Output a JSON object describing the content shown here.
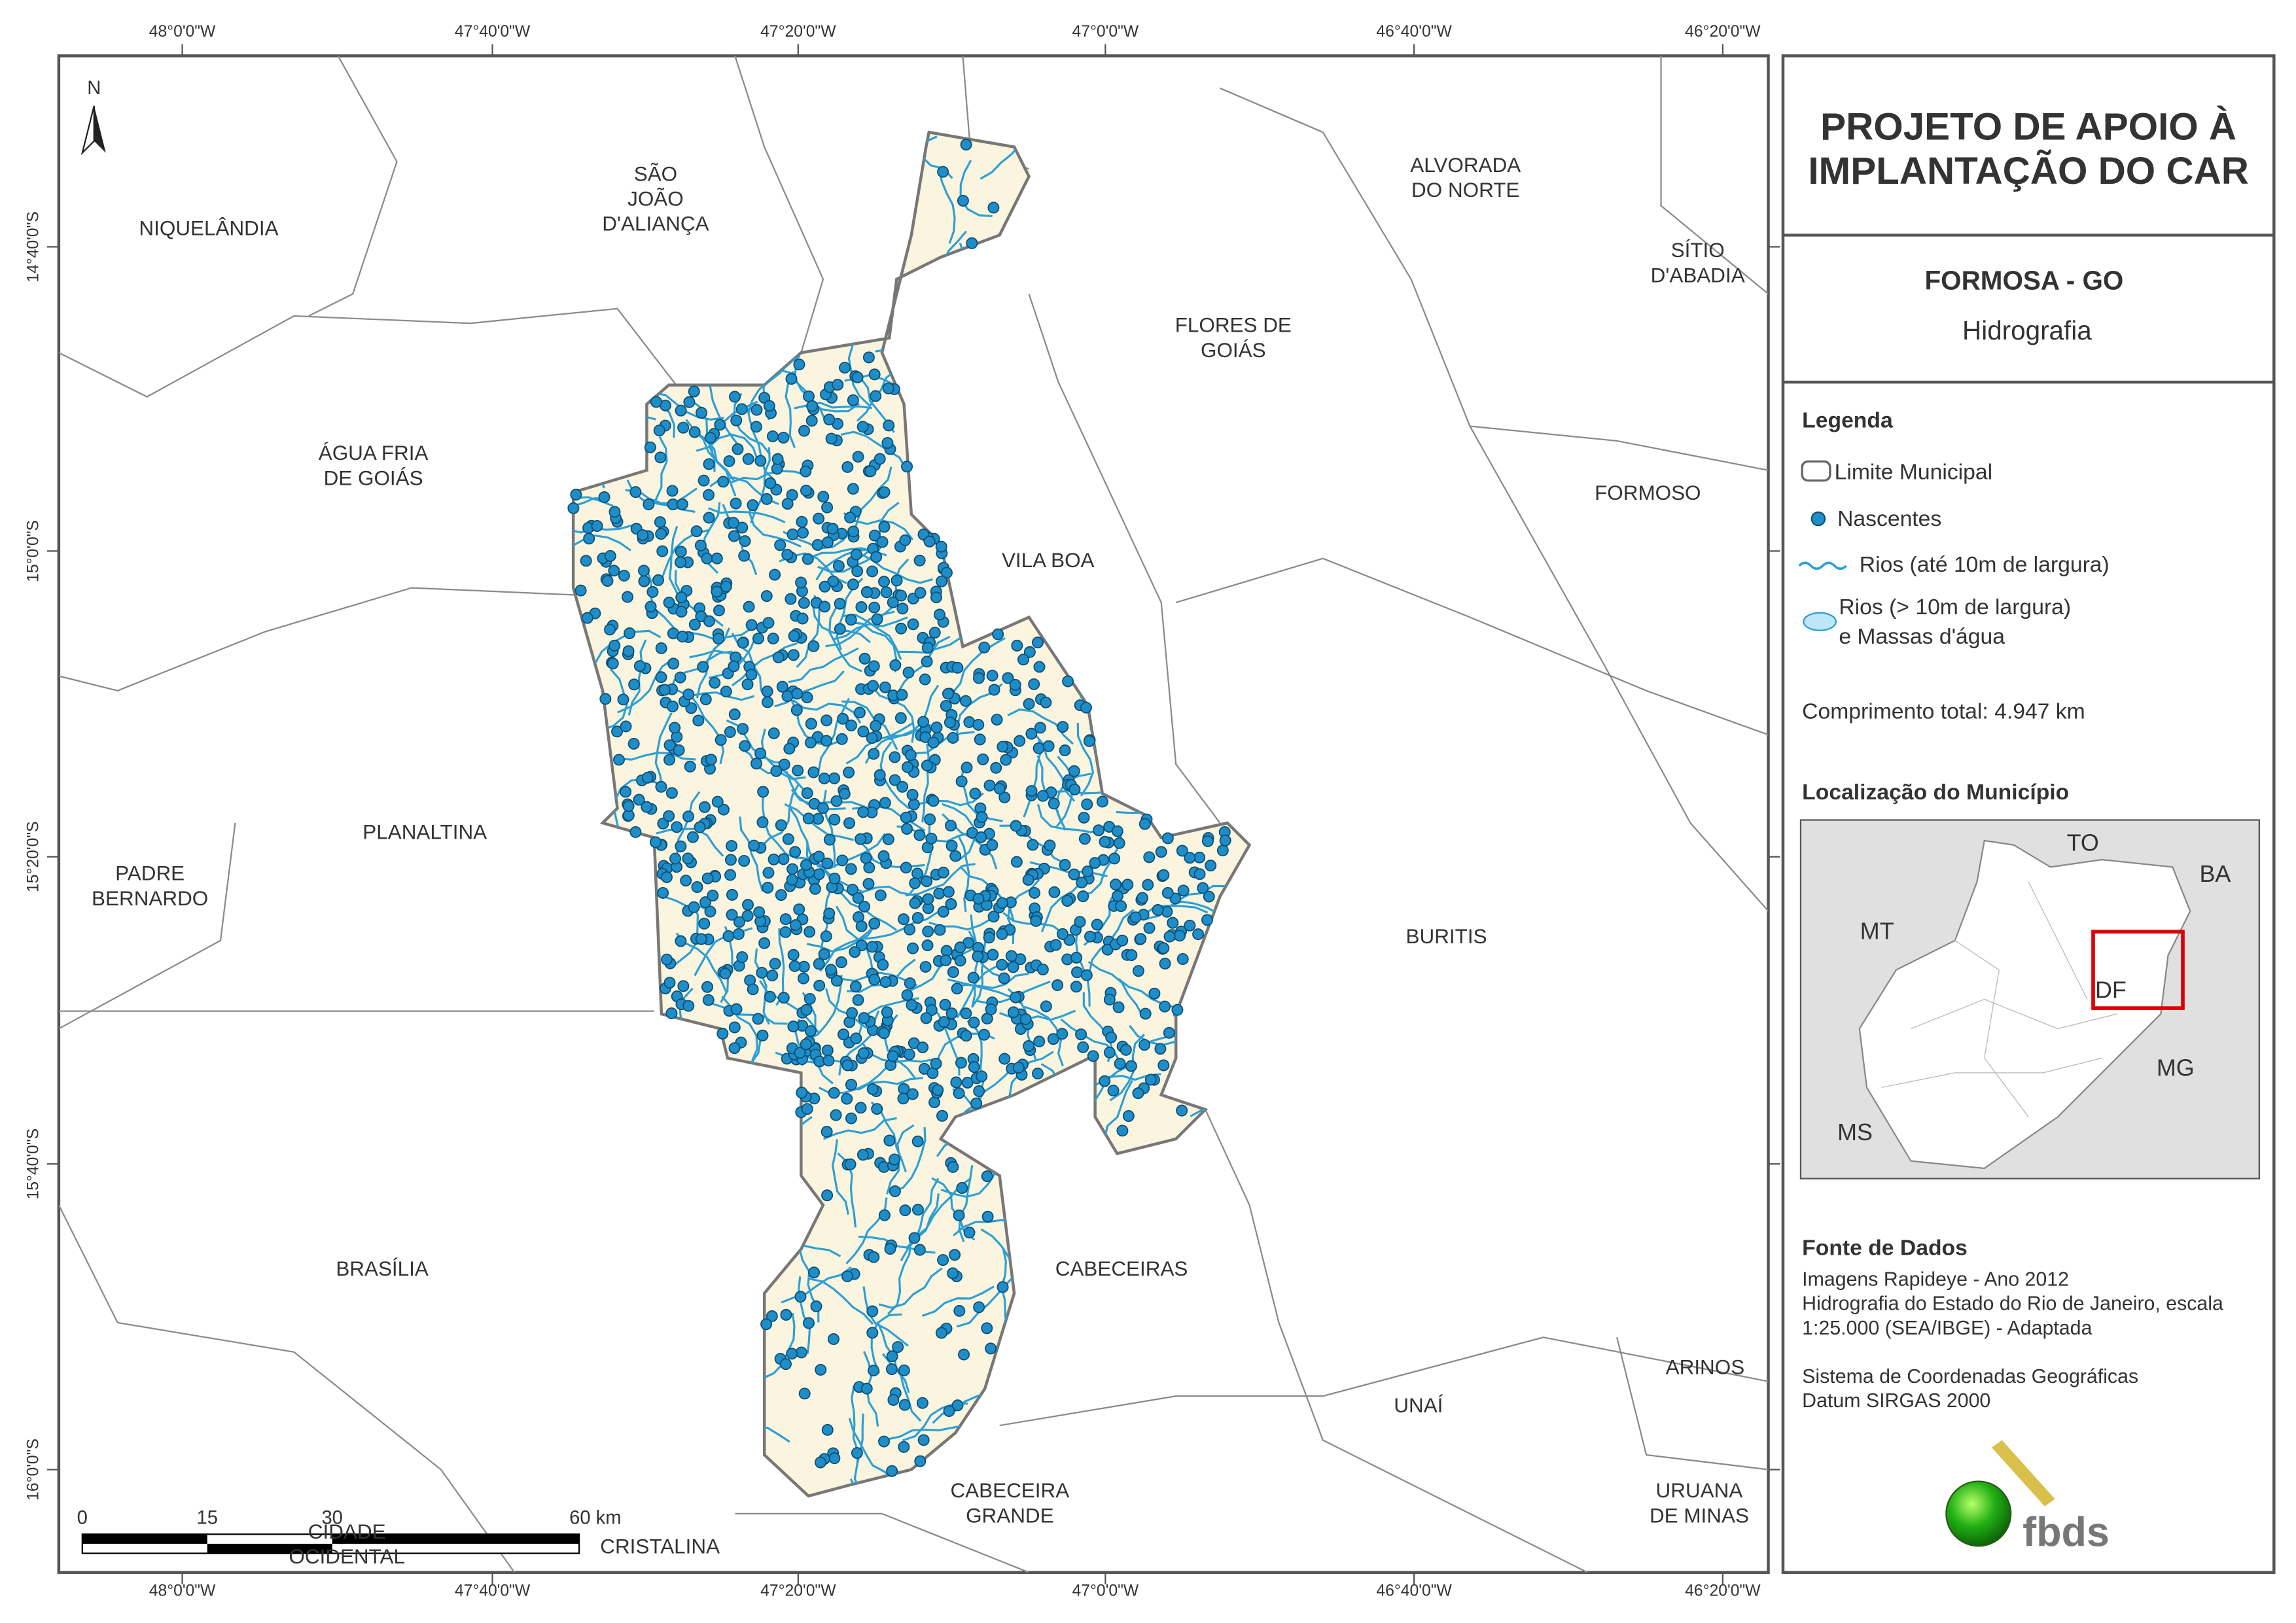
{
  "map": {
    "longitude_labels": [
      "48°0'0\"W",
      "47°40'0\"W",
      "47°20'0\"W",
      "47°0'0\"W",
      "46°40'0\"W",
      "46°20'0\"W"
    ],
    "latitude_labels": [
      "14°40'0\"S",
      "15°0'0\"S",
      "15°20'0\"S",
      "15°40'0\"S",
      "16°0'0\"S"
    ],
    "north": "N",
    "scale_labels": [
      "0",
      "15",
      "30",
      "60 km"
    ],
    "municipalities": [
      {
        "lines": [
          "NIQUELÂNDIA"
        ]
      },
      {
        "lines": [
          "SÃO",
          "JOÃO",
          "D'ALIANÇA"
        ]
      },
      {
        "lines": [
          "ALVORADA",
          "DO NORTE"
        ]
      },
      {
        "lines": [
          "SÍTIO",
          "D'ABADIA"
        ]
      },
      {
        "lines": [
          "FLORES DE",
          "GOIÁS"
        ]
      },
      {
        "lines": [
          "ÁGUA FRIA",
          "DE GOIÁS"
        ]
      },
      {
        "lines": [
          "FORMOSO"
        ]
      },
      {
        "lines": [
          "VILA BOA"
        ]
      },
      {
        "lines": [
          "PLANALTINA"
        ]
      },
      {
        "lines": [
          "PADRE",
          "BERNARDO"
        ]
      },
      {
        "lines": [
          "BURITIS"
        ]
      },
      {
        "lines": [
          "BRASÍLIA"
        ]
      },
      {
        "lines": [
          "CABECEIRAS"
        ]
      },
      {
        "lines": [
          "UNAÍ"
        ]
      },
      {
        "lines": [
          "ARINOS"
        ]
      },
      {
        "lines": [
          "CABECEIRA",
          "GRANDE"
        ]
      },
      {
        "lines": [
          "URUANA",
          "DE MINAS"
        ]
      },
      {
        "lines": [
          "CIDADE",
          "OCIDENTAL"
        ]
      },
      {
        "lines": [
          "CRISTALINA"
        ]
      }
    ]
  },
  "panel": {
    "title": [
      "PROJETO DE APOIO À",
      "IMPLANTAÇÃO DO CAR"
    ],
    "municipality": "FORMOSA - GO",
    "theme": "Hidrografia",
    "legend_title": "Legenda",
    "legend": [
      "Limite Municipal",
      "Nascentes",
      "Rios (até 10m de largura)",
      "Rios (> 10m de largura)",
      "e Massas d'água"
    ],
    "total_length": "Comprimento total:  4.947 km",
    "location_title": "Localização do Município",
    "inset_labels": [
      "TO",
      "BA",
      "MT",
      "DF",
      "MG",
      "MS"
    ],
    "sources_title": "Fonte de Dados",
    "sources": [
      "Imagens Rapideye - Ano 2012",
      "Hidrografia do Estado do Rio de Janeiro, escala",
      "1:25.000 (SEA/IBGE) - Adaptada",
      "",
      "Sistema de Coordenadas Geográficas",
      "Datum SIRGAS 2000"
    ],
    "logo": "fbds"
  }
}
